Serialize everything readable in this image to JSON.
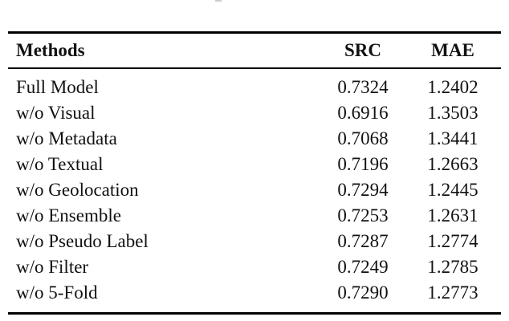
{
  "page": {
    "background": "#ffffff",
    "text_color": "#111111",
    "rule_color": "#000000"
  },
  "table": {
    "columns": {
      "method": "Methods",
      "src": "SRC",
      "mae": "MAE"
    },
    "rows": [
      {
        "method": "Full Model",
        "src": "0.7324",
        "mae": "1.2402"
      },
      {
        "method": "w/o Visual",
        "src": "0.6916",
        "mae": "1.3503"
      },
      {
        "method": "w/o Metadata",
        "src": "0.7068",
        "mae": "1.3441"
      },
      {
        "method": "w/o Textual",
        "src": "0.7196",
        "mae": "1.2663"
      },
      {
        "method": "w/o Geolocation",
        "src": "0.7294",
        "mae": "1.2445"
      },
      {
        "method": "w/o Ensemble",
        "src": "0.7253",
        "mae": "1.2631"
      },
      {
        "method": "w/o Pseudo Label",
        "src": "0.7287",
        "mae": "1.2774"
      },
      {
        "method": "w/o Filter",
        "src": "0.7249",
        "mae": "1.2785"
      },
      {
        "method": "w/o 5-Fold",
        "src": "0.7290",
        "mae": "1.2773"
      }
    ]
  }
}
